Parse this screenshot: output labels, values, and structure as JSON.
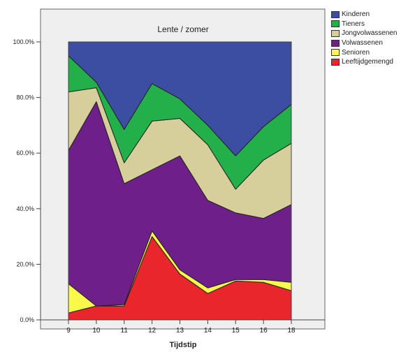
{
  "chart_data": {
    "type": "area",
    "stacked": true,
    "normalized": true,
    "title": "Lente / zomer",
    "xlabel": "Tijdstip",
    "ylabel": "",
    "x": [
      "9",
      "10",
      "11",
      "12",
      "13",
      "14",
      "15",
      "16",
      "18"
    ],
    "ylim": [
      0,
      100
    ],
    "yticks": [
      "0.0%",
      "20.0%",
      "40.0%",
      "60.0%",
      "80.0%",
      "100.0%"
    ],
    "grid": false,
    "legend_position": "top-right",
    "series": [
      {
        "name": "Leeftijdgemengd",
        "color": "#e8262c",
        "values": [
          2.5,
          5,
          5,
          30,
          16.5,
          9.5,
          14,
          13.5,
          10.5
        ]
      },
      {
        "name": "Senioren",
        "color": "#f9f94c",
        "values": [
          10.5,
          0,
          0.5,
          2,
          1.5,
          2,
          0.5,
          1,
          3
        ]
      },
      {
        "name": "Volwassenen",
        "color": "#6e1f8a",
        "values": [
          48,
          73.5,
          43.5,
          22,
          41,
          31.5,
          24,
          22,
          28
        ]
      },
      {
        "name": "Jongvolwassenen",
        "color": "#d6cf9b",
        "values": [
          21,
          5,
          7.5,
          17.5,
          13.5,
          20,
          8.5,
          21,
          22
        ]
      },
      {
        "name": "Tieners",
        "color": "#23b04a",
        "values": [
          13,
          2,
          12,
          13.5,
          7,
          7,
          12,
          12,
          14
        ]
      },
      {
        "name": "Kinderen",
        "color": "#3c4ea1",
        "values": [
          5,
          14.5,
          31.5,
          15,
          20.5,
          30,
          41,
          30.5,
          22.5
        ]
      }
    ],
    "legend_order": [
      "Kinderen",
      "Tieners",
      "Jongvolwassenen",
      "Volwassenen",
      "Senioren",
      "Leeftijdgemengd"
    ]
  }
}
